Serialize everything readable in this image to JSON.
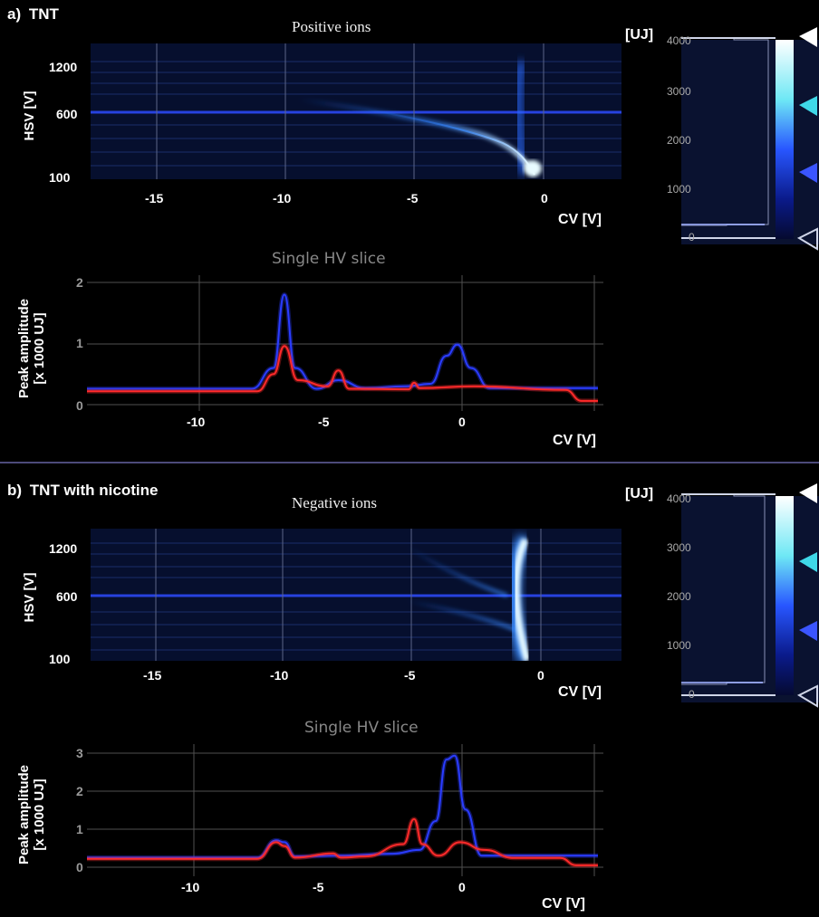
{
  "panels": [
    {
      "label": "a)",
      "sample": "TNT",
      "heatmap": {
        "title": "Positive ions",
        "ylabel": "HSV [V]",
        "xlabel": "CV [V]",
        "yticks": [
          "1200",
          "600",
          "100"
        ],
        "xticks": [
          "-15",
          "-10",
          "-5",
          "0"
        ]
      },
      "colorbar": {
        "unit": "[UJ]",
        "ticks": [
          "4000",
          "3000",
          "2000",
          "1000",
          "0"
        ]
      },
      "slice": {
        "title": "Single HV slice",
        "ylabel": "Peak amplitude [x 1000 UJ]",
        "ylabel_lines": [
          "Peak amplitude",
          "[x 1000 UJ]"
        ],
        "xlabel": "CV [V]",
        "yticks": [
          "2",
          "1",
          "0"
        ],
        "xticks": [
          "-10",
          "-5",
          "0"
        ]
      }
    },
    {
      "label": "b)",
      "sample": "TNT with nicotine",
      "heatmap": {
        "title": "Negative ions",
        "ylabel": "HSV [V]",
        "xlabel": "CV [V]",
        "yticks": [
          "1200",
          "600",
          "100"
        ],
        "xticks": [
          "-15",
          "-10",
          "-5",
          "0"
        ]
      },
      "colorbar": {
        "unit": "[UJ]",
        "ticks": [
          "4000",
          "3000",
          "2000",
          "1000",
          "0"
        ]
      },
      "slice": {
        "title": "Single HV slice",
        "ylabel": "Peak amplitude [x 1000 UJ]",
        "ylabel_lines": [
          "Peak amplitude",
          "[x 1000 UJ]"
        ],
        "xlabel": "CV [V]",
        "yticks": [
          "3",
          "2",
          "1",
          "0"
        ],
        "xticks": [
          "-10",
          "-5",
          "0"
        ]
      }
    }
  ],
  "colors": {
    "blue_trace": "#2a3cff",
    "red_trace": "#ff2a2a",
    "heat_bright": "#e8fbff",
    "heat_mid": "#1e6bff",
    "background": "#000000"
  },
  "chart_data": [
    {
      "type": "heatmap",
      "title": "Positive ions",
      "xlabel": "CV [V]",
      "ylabel": "HSV [V]",
      "xlim": [
        -17,
        2.5
      ],
      "ylim": [
        100,
        1400
      ],
      "colorbar": {
        "label": "[UJ]",
        "range": [
          0,
          4100
        ],
        "marker_levels": [
          4100,
          2700,
          1300,
          0
        ]
      },
      "features": [
        {
          "name": "curved branch",
          "cv": [
            -8.5,
            -6,
            -4,
            -2.5,
            -1.5,
            -0.8,
            -0.3
          ],
          "hsv": [
            700,
            620,
            540,
            440,
            330,
            220,
            110
          ]
        },
        {
          "name": "vertical band",
          "cv": [
            -0.8,
            -0.8,
            -0.6
          ],
          "hsv": [
            1200,
            600,
            100
          ]
        },
        {
          "name": "horizontal line",
          "hsv": 650
        }
      ]
    },
    {
      "type": "line",
      "title": "Single HV slice",
      "xlabel": "CV [V]",
      "ylabel": "Peak amplitude [x 1000 UJ]",
      "xlim": [
        -14.3,
        4.8
      ],
      "ylim": [
        0,
        2
      ],
      "series": [
        {
          "color": "#2a3cff",
          "x": [
            -14.3,
            -8.2,
            -7.4,
            -7.0,
            -6.6,
            -5.8,
            -5.0,
            -4.0,
            -2.5,
            -1.6,
            -1.0,
            -0.6,
            -0.1,
            0.6,
            2.5,
            4.6
          ],
          "y": [
            0.26,
            0.26,
            0.6,
            1.8,
            0.6,
            0.26,
            0.4,
            0.27,
            0.3,
            0.34,
            0.8,
            0.98,
            0.6,
            0.27,
            0.27,
            0.27
          ]
        },
        {
          "color": "#ff2a2a",
          "x": [
            -14.3,
            -8.0,
            -7.4,
            -7.0,
            -6.5,
            -5.4,
            -5.0,
            -4.6,
            -2.4,
            -2.2,
            -2.0,
            0.0,
            3.4,
            4.0,
            4.6
          ],
          "y": [
            0.22,
            0.22,
            0.5,
            0.96,
            0.4,
            0.3,
            0.56,
            0.26,
            0.25,
            0.36,
            0.27,
            0.3,
            0.24,
            0.06,
            0.06
          ]
        }
      ]
    },
    {
      "type": "heatmap",
      "title": "Negative ions",
      "xlabel": "CV [V]",
      "ylabel": "HSV [V]",
      "xlim": [
        -17,
        2.5
      ],
      "ylim": [
        100,
        1400
      ],
      "colorbar": {
        "label": "[UJ]",
        "range": [
          0,
          4100
        ],
        "marker_levels": [
          4100,
          2700,
          1300,
          0
        ]
      },
      "features": [
        {
          "name": "vertical band",
          "cv": [
            -0.8,
            -1.1,
            -0.8,
            -0.6
          ],
          "hsv": [
            1250,
            900,
            400,
            100
          ]
        },
        {
          "name": "faint branch",
          "cv": [
            -5.5,
            -4,
            -2.5,
            -1.5
          ],
          "hsv": [
            1200,
            1000,
            750,
            600
          ]
        },
        {
          "name": "horizontal line",
          "hsv": 600
        }
      ]
    },
    {
      "type": "line",
      "title": "Single HV slice",
      "xlabel": "CV [V]",
      "ylabel": "Peak amplitude [x 1000 UJ]",
      "xlim": [
        -14.3,
        4.8
      ],
      "ylim": [
        0,
        3.2
      ],
      "series": [
        {
          "color": "#2a3cff",
          "x": [
            -14.3,
            -8.0,
            -7.3,
            -7.0,
            -6.6,
            -5.0,
            -3.0,
            -2.0,
            -1.4,
            -1.0,
            -0.7,
            -0.3,
            0.3,
            1.5,
            4.6
          ],
          "y": [
            0.25,
            0.25,
            0.7,
            0.65,
            0.28,
            0.3,
            0.35,
            0.45,
            1.2,
            2.8,
            2.9,
            1.5,
            0.3,
            0.3,
            0.3
          ]
        },
        {
          "color": "#ff2a2a",
          "x": [
            -14.3,
            -8.0,
            -7.3,
            -7.0,
            -6.6,
            -5.2,
            -4.9,
            -4.0,
            -2.6,
            -2.2,
            -1.9,
            -1.3,
            -0.5,
            0.4,
            1.5,
            3.2,
            3.8,
            4.6
          ],
          "y": [
            0.22,
            0.22,
            0.65,
            0.55,
            0.25,
            0.36,
            0.25,
            0.28,
            0.6,
            1.25,
            0.6,
            0.3,
            0.65,
            0.45,
            0.24,
            0.24,
            0.05,
            0.05
          ]
        }
      ]
    }
  ]
}
